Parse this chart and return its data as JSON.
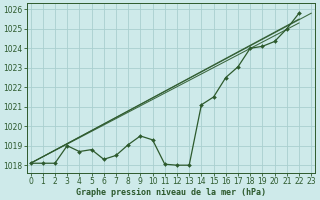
{
  "bg_color": "#ceeaea",
  "grid_color": "#aacfcf",
  "line_color": "#2d5a2d",
  "xlabel": "Graphe pression niveau de la mer (hPa)",
  "xlabel_color": "#2d5a2d",
  "ylabel_ticks": [
    1018,
    1019,
    1020,
    1021,
    1022,
    1023,
    1024,
    1025,
    1026
  ],
  "xticks": [
    0,
    1,
    2,
    3,
    4,
    5,
    6,
    7,
    8,
    9,
    10,
    11,
    12,
    13,
    14,
    15,
    16,
    17,
    18,
    19,
    20,
    21,
    22,
    23
  ],
  "xlim": [
    -0.3,
    23.3
  ],
  "ylim": [
    1017.6,
    1026.3
  ],
  "smooth_lines": [
    [
      [
        0,
        23
      ],
      [
        1018.1,
        1025.8
      ]
    ],
    [
      [
        0,
        22
      ],
      [
        1018.1,
        1025.5
      ]
    ],
    [
      [
        0,
        22
      ],
      [
        1018.1,
        1025.3
      ]
    ]
  ],
  "main_series": [
    1018.1,
    1018.1,
    1018.1,
    1019.0,
    1018.7,
    1018.8,
    1018.3,
    1018.5,
    1019.05,
    1019.5,
    1019.3,
    1018.05,
    1018.0,
    1018.0,
    1021.1,
    1021.5,
    1022.5,
    1023.05,
    1024.0,
    1024.1,
    1024.35,
    1025.0,
    1025.8
  ],
  "marker_size": 2.0,
  "line_width": 0.9,
  "tick_fontsize": 5.5,
  "xlabel_fontsize": 6.0
}
